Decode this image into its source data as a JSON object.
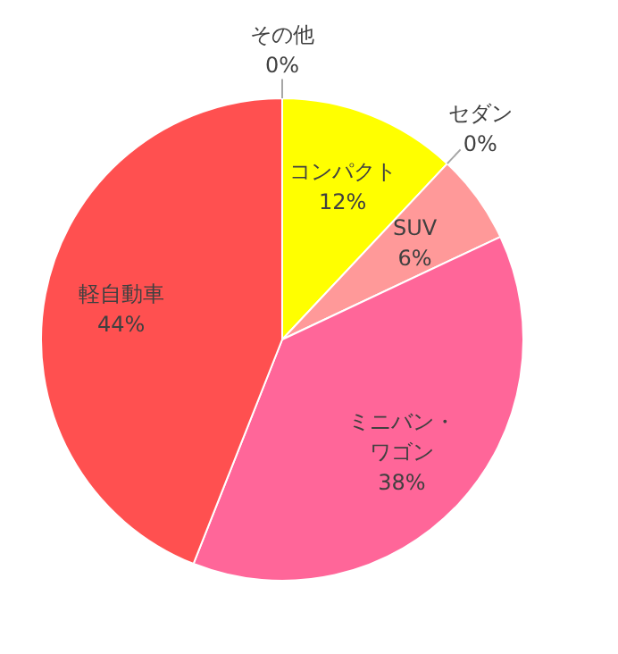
{
  "chart_data": {
    "type": "pie",
    "categories": [
      "コンパクト",
      "セダン",
      "SUV",
      "ミニバン・ワゴン",
      "軽自動車",
      "その他"
    ],
    "values": [
      12,
      0,
      6,
      38,
      44,
      0
    ],
    "value_labels": [
      "12%",
      "0%",
      "6%",
      "38%",
      "44%",
      "0%"
    ],
    "colors": [
      "#ffff00",
      null,
      "#ff9999",
      "#ff6699",
      "#ff5050",
      null
    ]
  }
}
